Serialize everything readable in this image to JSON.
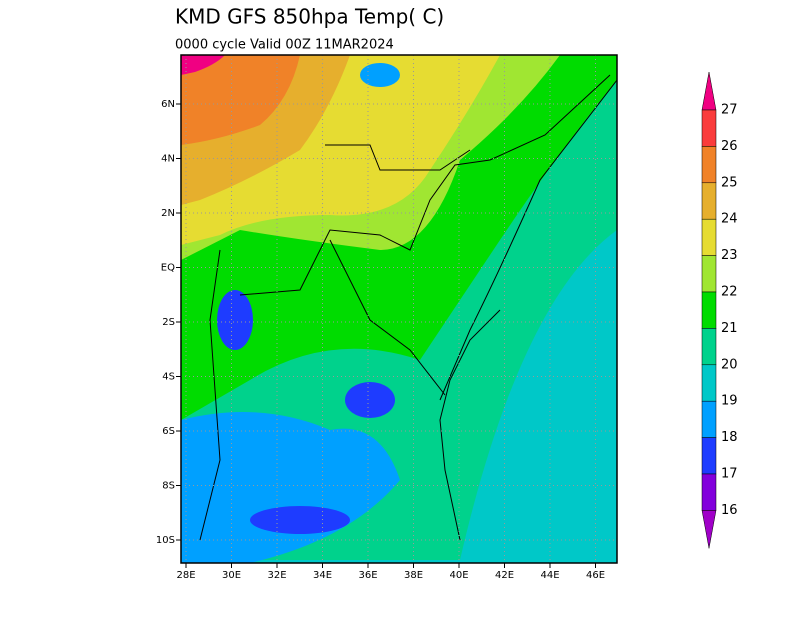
{
  "header": {
    "title": "KMD GFS 850hpa Temp(  C)",
    "subtitle": "0000 cycle Valid 00Z 11MAR2024"
  },
  "map": {
    "lat_labels": [
      "6N",
      "4N",
      "2N",
      "EQ",
      "2S",
      "4S",
      "6S",
      "8S",
      "10S"
    ],
    "lon_labels": [
      "28E",
      "30E",
      "32E",
      "34E",
      "36E",
      "38E",
      "40E",
      "42E",
      "44E",
      "46E"
    ]
  },
  "colorbar": {
    "labels": [
      27,
      26,
      25,
      24,
      23,
      22,
      21,
      20,
      19,
      18,
      17,
      16
    ],
    "colors": [
      "#f00082",
      "#fa3c3c",
      "#f08228",
      "#e6af2d",
      "#e6dc32",
      "#a0e632",
      "#00dc00",
      "#00d28c",
      "#00c8c8",
      "#00a0ff",
      "#1e3cff",
      "#8200dc",
      "#a000c8"
    ]
  }
}
